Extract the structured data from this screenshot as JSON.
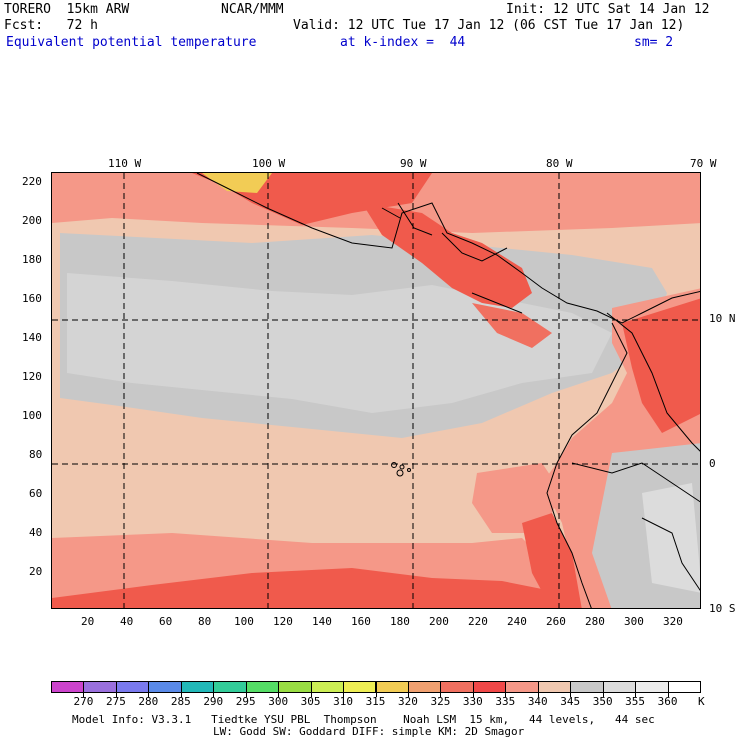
{
  "header": {
    "model": "TORERO  15km ARW",
    "org": "NCAR/MMM",
    "init": "Init: 12 UTC Sat 14 Jan 12",
    "fcst": "Fcst:   72 h",
    "valid": "Valid: 12 UTC Tue 17 Jan 12 (06 CST Tue 17 Jan 12)",
    "field": "Equivalent potential temperature",
    "level": "at k-index =  44",
    "smooth": "sm= 2"
  },
  "map": {
    "top_lon_labels": [
      "110 W",
      "100 W",
      "90 W",
      "80 W",
      "70 W"
    ],
    "right_lat_labels": [
      "10 N",
      "0",
      "10 S"
    ],
    "left_ticks": [
      "220",
      "200",
      "180",
      "160",
      "140",
      "120",
      "100",
      "80",
      "60",
      "40",
      "20"
    ],
    "bottom_ticks": [
      "20",
      "40",
      "60",
      "80",
      "100",
      "120",
      "140",
      "160",
      "180",
      "200",
      "220",
      "240",
      "260",
      "280",
      "300",
      "320"
    ]
  },
  "colorbar": {
    "labels": [
      "270",
      "275",
      "280",
      "285",
      "290",
      "295",
      "300",
      "305",
      "310",
      "315",
      "320",
      "325",
      "330",
      "335",
      "340",
      "345",
      "350",
      "355",
      "360"
    ],
    "unit": "K",
    "colors": [
      "#cc44cc",
      "#9a70dd",
      "#7a7aee",
      "#5a8ae8",
      "#22b8b8",
      "#33cc99",
      "#55dd66",
      "#99dd44",
      "#ccee55",
      "#eeee55",
      "#f2cc55",
      "#f0a070",
      "#f07060",
      "#f04848",
      "#f59888",
      "#f0c8b0",
      "#c8c8c8",
      "#dcdcdc",
      "#ececec",
      "#ffffff"
    ]
  },
  "footer": {
    "line1": "Model Info: V3.3.1   Tiedtke YSU PBL  Thompson    Noah LSM  15 km,   44 levels,   44 sec",
    "line2": "LW: Godd SW: Goddard DIFF: simple KM: 2D Smagor"
  }
}
